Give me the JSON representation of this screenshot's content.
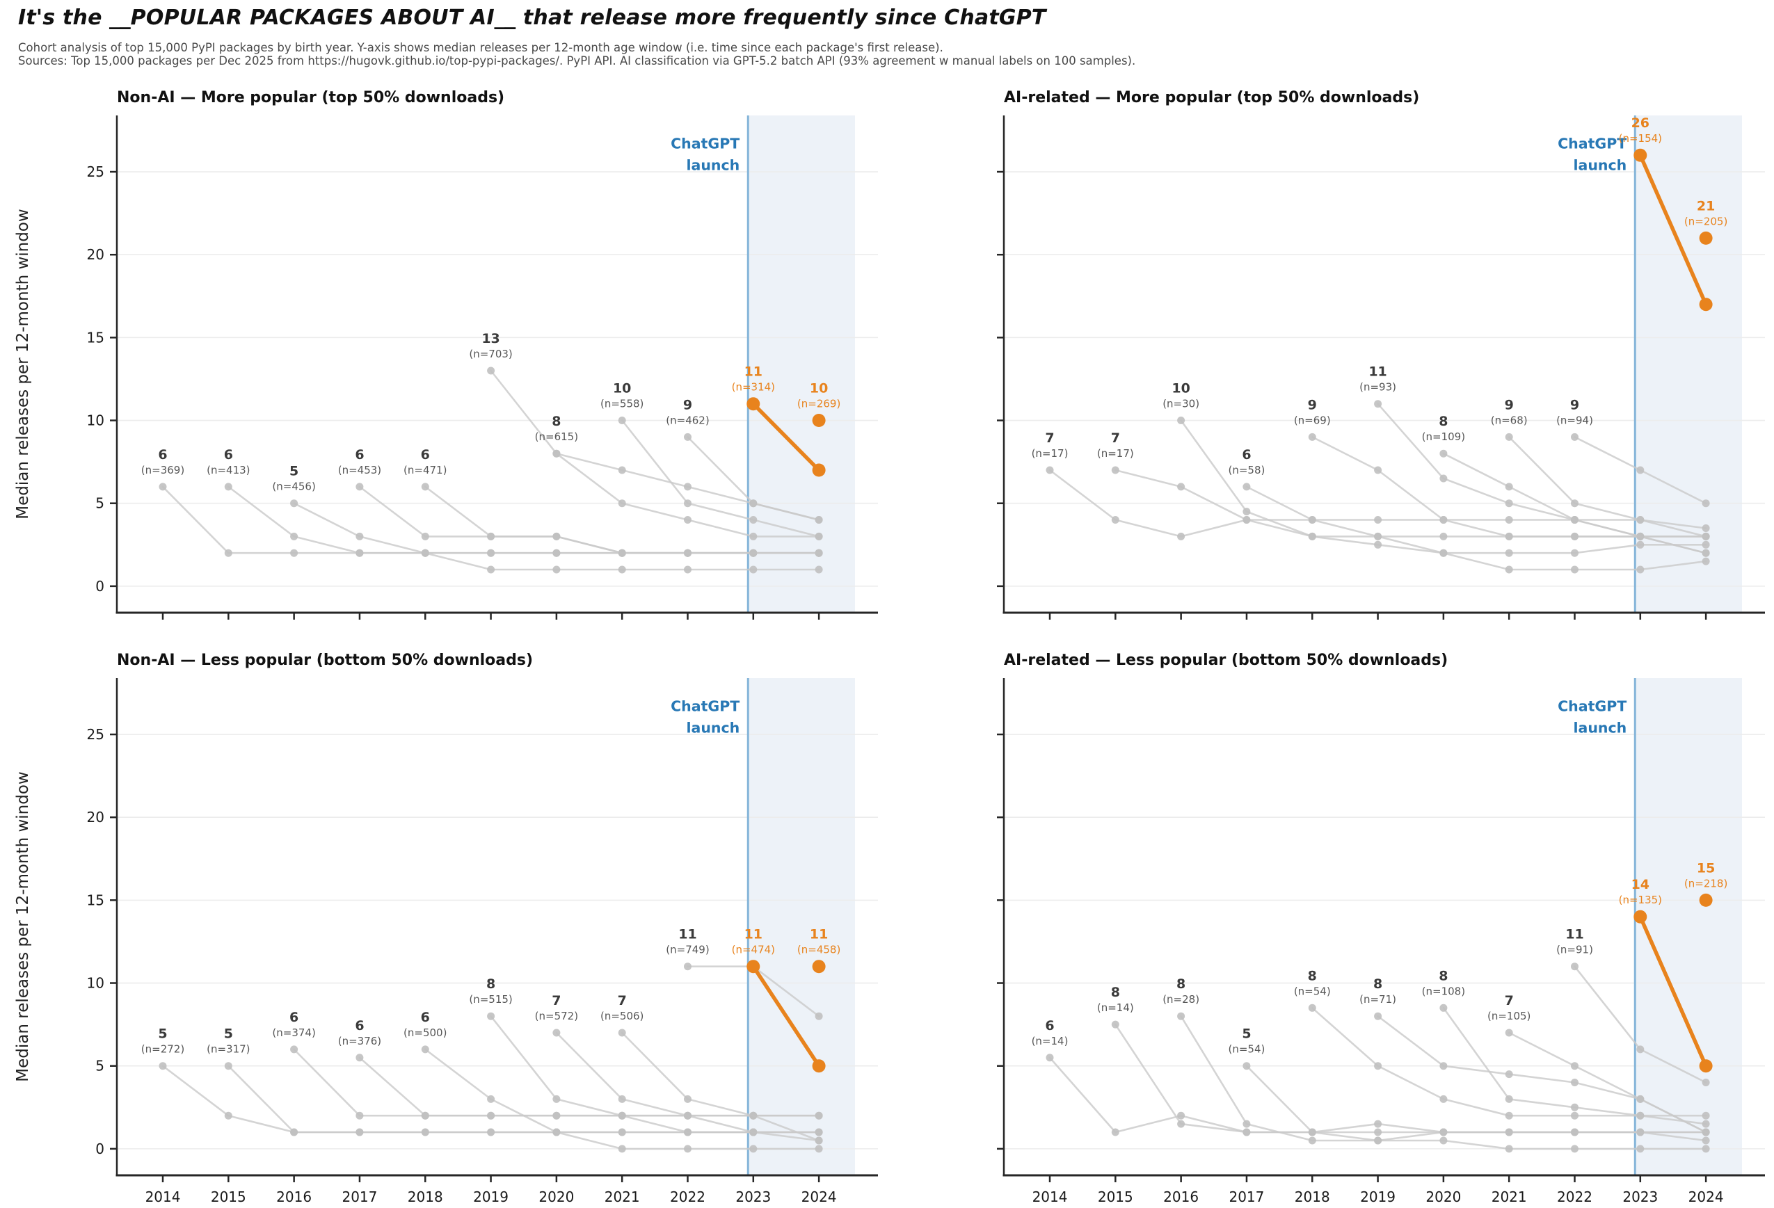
{
  "header": {
    "title": "It's the __POPULAR PACKAGES ABOUT AI__ that release more frequently since ChatGPT",
    "subtitle_line1": "Cohort analysis of top 15,000 PyPI packages by birth year. Y-axis shows median releases per 12-month age window (i.e. time since each package's first release).",
    "subtitle_line2": "Sources: Top 15,000 packages per Dec 2025 from https://hugovk.github.io/top-pypi-packages/. PyPI API. AI classification via GPT-5.2 batch API (93% agreement w manual labels on 100 samples)."
  },
  "colors": {
    "orange": "#e8831d",
    "gray_line": "#c9c9c9",
    "gray_dot": "#c0c0c0",
    "grid": "#ececec",
    "shade": "#edf2f8",
    "launch_line": "#85b5d9",
    "launch_text": "#2878b5",
    "spine": "#262626",
    "tick_label": "#1a1a1a",
    "ann_value_gray": "#3a3a3a",
    "ann_n_gray": "#575757"
  },
  "axis": {
    "xlim": [
      2013.3,
      2024.9
    ],
    "ylim": [
      -1.6,
      28.4
    ],
    "years": [
      2014,
      2015,
      2016,
      2017,
      2018,
      2019,
      2020,
      2021,
      2022,
      2023,
      2024
    ],
    "yticks": [
      0,
      5,
      10,
      15,
      20,
      25
    ],
    "ylabel": "Median releases per 12-month window",
    "launch_x": 2022.92,
    "shade_end_x": 2024.55,
    "launch_label_line1": "ChatGPT",
    "launch_label_line2": "launch"
  },
  "chart_data": [
    {
      "type": "line",
      "title": "Non-AI — More popular (top 50% downloads)",
      "position": "top-left",
      "show_ylabel": true,
      "show_ytick_labels": true,
      "show_xtick_labels": false,
      "cohorts": [
        {
          "start_year": 2014,
          "label": "6",
          "n": 369,
          "highlight": false,
          "values": [
            6,
            2,
            2,
            2,
            2,
            1,
            1,
            1,
            1,
            1,
            1
          ]
        },
        {
          "start_year": 2015,
          "label": "6",
          "n": 413,
          "highlight": false,
          "values": [
            6,
            3,
            2,
            2,
            2,
            2,
            2,
            2,
            2,
            2
          ]
        },
        {
          "start_year": 2016,
          "label": "5",
          "n": 456,
          "highlight": false,
          "values": [
            5,
            3,
            2,
            2,
            2,
            2,
            2,
            2,
            2
          ]
        },
        {
          "start_year": 2017,
          "label": "6",
          "n": 453,
          "highlight": false,
          "values": [
            6,
            3,
            3,
            3,
            2,
            2,
            2,
            2
          ]
        },
        {
          "start_year": 2018,
          "label": "6",
          "n": 471,
          "highlight": false,
          "values": [
            6,
            3,
            3,
            2,
            2,
            2,
            2
          ]
        },
        {
          "start_year": 2019,
          "label": "13",
          "n": 703,
          "highlight": false,
          "values": [
            13,
            8,
            5,
            4,
            3,
            3
          ]
        },
        {
          "start_year": 2020,
          "label": "8",
          "n": 615,
          "highlight": false,
          "values": [
            8,
            7,
            6,
            5,
            4
          ]
        },
        {
          "start_year": 2021,
          "label": "10",
          "n": 558,
          "highlight": false,
          "values": [
            10,
            5,
            4,
            3
          ]
        },
        {
          "start_year": 2022,
          "label": "9",
          "n": 462,
          "highlight": false,
          "values": [
            9,
            5,
            4
          ]
        },
        {
          "start_year": 2023,
          "label": "11",
          "n": 314,
          "highlight": true,
          "values": [
            11,
            7
          ]
        },
        {
          "start_year": 2024,
          "label": "10",
          "n": 269,
          "highlight": true,
          "values": [
            10
          ]
        }
      ]
    },
    {
      "type": "line",
      "title": "AI-related — More popular (top 50% downloads)",
      "position": "top-right",
      "show_ylabel": false,
      "show_ytick_labels": false,
      "show_xtick_labels": false,
      "cohorts": [
        {
          "start_year": 2014,
          "label": "7",
          "n": 17,
          "highlight": false,
          "values": [
            7,
            4,
            3,
            4,
            4,
            4,
            4,
            4,
            4,
            4,
            3.5
          ]
        },
        {
          "start_year": 2015,
          "label": "7",
          "n": 17,
          "highlight": false,
          "values": [
            7,
            6,
            4,
            3,
            3,
            3,
            3,
            3,
            3,
            3
          ]
        },
        {
          "start_year": 2016,
          "label": "10",
          "n": 30,
          "highlight": false,
          "values": [
            10,
            4.5,
            3,
            2.5,
            2,
            2,
            2,
            2.5,
            2.5
          ]
        },
        {
          "start_year": 2017,
          "label": "6",
          "n": 58,
          "highlight": false,
          "values": [
            6,
            4,
            3,
            2,
            1,
            1,
            1,
            1.5
          ]
        },
        {
          "start_year": 2018,
          "label": "9",
          "n": 69,
          "highlight": false,
          "values": [
            9,
            7,
            4,
            3,
            3,
            3,
            2
          ]
        },
        {
          "start_year": 2019,
          "label": "11",
          "n": 93,
          "highlight": false,
          "values": [
            11,
            6.5,
            5,
            4,
            3,
            3
          ]
        },
        {
          "start_year": 2020,
          "label": "8",
          "n": 109,
          "highlight": false,
          "values": [
            8,
            6,
            4,
            3,
            2
          ]
        },
        {
          "start_year": 2021,
          "label": "9",
          "n": 68,
          "highlight": false,
          "values": [
            9,
            5,
            4,
            3
          ]
        },
        {
          "start_year": 2022,
          "label": "9",
          "n": 94,
          "highlight": false,
          "values": [
            9,
            7,
            5
          ]
        },
        {
          "start_year": 2023,
          "label": "26",
          "n": 154,
          "highlight": true,
          "values": [
            26,
            17
          ]
        },
        {
          "start_year": 2024,
          "label": "21",
          "n": 205,
          "highlight": true,
          "values": [
            21
          ]
        }
      ]
    },
    {
      "type": "line",
      "title": "Non-AI — Less popular (bottom 50% downloads)",
      "position": "bottom-left",
      "show_ylabel": true,
      "show_ytick_labels": true,
      "show_xtick_labels": true,
      "cohorts": [
        {
          "start_year": 2014,
          "label": "5",
          "n": 272,
          "highlight": false,
          "values": [
            5,
            2,
            1,
            1,
            1,
            1,
            1,
            1,
            1,
            1,
            1
          ]
        },
        {
          "start_year": 2015,
          "label": "5",
          "n": 317,
          "highlight": false,
          "values": [
            5,
            1,
            1,
            1,
            1,
            1,
            1,
            1,
            1,
            1
          ]
        },
        {
          "start_year": 2016,
          "label": "6",
          "n": 374,
          "highlight": false,
          "values": [
            6,
            2,
            2,
            2,
            2,
            2,
            2,
            2,
            2
          ]
        },
        {
          "start_year": 2017,
          "label": "6",
          "n": 376,
          "highlight": false,
          "values": [
            5.5,
            2,
            2,
            2,
            2,
            2,
            2,
            2
          ]
        },
        {
          "start_year": 2018,
          "label": "6",
          "n": 500,
          "highlight": false,
          "values": [
            6,
            3,
            1,
            0,
            0,
            0,
            0
          ]
        },
        {
          "start_year": 2019,
          "label": "8",
          "n": 515,
          "highlight": false,
          "values": [
            8,
            3,
            2,
            1,
            1,
            0.5
          ]
        },
        {
          "start_year": 2020,
          "label": "7",
          "n": 572,
          "highlight": false,
          "values": [
            7,
            3,
            2,
            1,
            1
          ]
        },
        {
          "start_year": 2021,
          "label": "7",
          "n": 506,
          "highlight": false,
          "values": [
            7,
            3,
            2,
            0.5
          ]
        },
        {
          "start_year": 2022,
          "label": "11",
          "n": 749,
          "highlight": false,
          "values": [
            11,
            11,
            8
          ]
        },
        {
          "start_year": 2023,
          "label": "11",
          "n": 474,
          "highlight": true,
          "values": [
            11,
            5
          ]
        },
        {
          "start_year": 2024,
          "label": "11",
          "n": 458,
          "highlight": true,
          "values": [
            11
          ]
        }
      ]
    },
    {
      "type": "line",
      "title": "AI-related — Less popular (bottom 50% downloads)",
      "position": "bottom-right",
      "show_ylabel": false,
      "show_ytick_labels": false,
      "show_xtick_labels": true,
      "cohorts": [
        {
          "start_year": 2014,
          "label": "6",
          "n": 14,
          "highlight": false,
          "values": [
            5.5,
            1,
            2,
            1,
            1,
            1,
            1,
            1,
            1,
            1,
            1
          ]
        },
        {
          "start_year": 2015,
          "label": "8",
          "n": 14,
          "highlight": false,
          "values": [
            7.5,
            1.5,
            1,
            1,
            1.5,
            1,
            1,
            1,
            1,
            1
          ]
        },
        {
          "start_year": 2016,
          "label": "8",
          "n": 28,
          "highlight": false,
          "values": [
            8,
            1.5,
            0.5,
            0.5,
            1,
            1,
            1,
            1,
            0.5
          ]
        },
        {
          "start_year": 2017,
          "label": "5",
          "n": 54,
          "highlight": false,
          "values": [
            5,
            1,
            0.5,
            0.5,
            0,
            0,
            0,
            0
          ]
        },
        {
          "start_year": 2018,
          "label": "8",
          "n": 54,
          "highlight": false,
          "values": [
            8.5,
            5,
            3,
            2,
            2,
            2,
            2
          ]
        },
        {
          "start_year": 2019,
          "label": "8",
          "n": 71,
          "highlight": false,
          "values": [
            8,
            5,
            4.5,
            4,
            3,
            1
          ]
        },
        {
          "start_year": 2020,
          "label": "8",
          "n": 108,
          "highlight": false,
          "values": [
            8.5,
            3,
            2.5,
            2,
            1.5
          ]
        },
        {
          "start_year": 2021,
          "label": "7",
          "n": 105,
          "highlight": false,
          "values": [
            7,
            5,
            3,
            1
          ]
        },
        {
          "start_year": 2022,
          "label": "11",
          "n": 91,
          "highlight": false,
          "values": [
            11,
            6,
            4
          ]
        },
        {
          "start_year": 2023,
          "label": "14",
          "n": 135,
          "highlight": true,
          "values": [
            14,
            5
          ]
        },
        {
          "start_year": 2024,
          "label": "15",
          "n": 218,
          "highlight": true,
          "values": [
            15
          ]
        }
      ]
    }
  ]
}
